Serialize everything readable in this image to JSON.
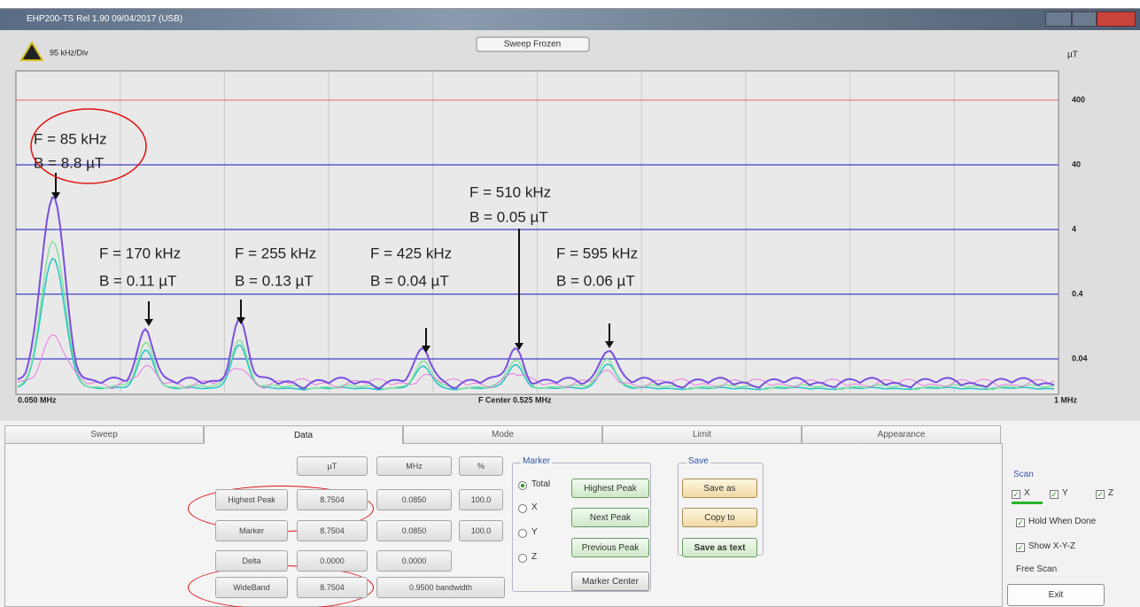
{
  "window": {
    "title": "EHP200-TS Rel 1.90 09/04/2017 (USB)"
  },
  "plot": {
    "div_label": "95 kHz/Div",
    "status_button": "Sweep Frozen",
    "unit": "µT",
    "y_labels": [
      "400",
      "40",
      "4",
      "0.4",
      "0.04"
    ],
    "x_labels": [
      "0.050 MHz",
      "F Center 0.525 MHz",
      "1 MHz"
    ],
    "annotations": [
      {
        "freq": "F = 85 kHz",
        "field": "B = 8.8 µT"
      },
      {
        "freq": "F = 170 kHz",
        "field": "B = 0.11 µT"
      },
      {
        "freq": "F = 255 kHz",
        "field": "B = 0.13 µT"
      },
      {
        "freq": "F = 425 kHz",
        "field": "B = 0.04 µT"
      },
      {
        "freq": "F = 510 kHz",
        "field": "B = 0.05 µT"
      },
      {
        "freq": "F = 595 kHz",
        "field": "B = 0.06 µT"
      }
    ]
  },
  "tabs": [
    "Sweep",
    "Data",
    "Mode",
    "Limit",
    "Appearance"
  ],
  "data_table": {
    "headers": [
      "µT",
      "MHz",
      "%"
    ],
    "rows": [
      [
        "Highest Peak",
        "8.7504",
        "0.0850",
        "100.0"
      ],
      [
        "Marker",
        "8.7504",
        "0.0850",
        "100.0"
      ],
      [
        "Delta",
        "0.0000",
        "0.0000"
      ],
      [
        "WideBand",
        "8.7504",
        "0.9500 bandwidth"
      ]
    ]
  },
  "marker": {
    "title": "Marker",
    "options": [
      "Total",
      "X",
      "Y",
      "Z"
    ],
    "buttons": [
      "Highest Peak",
      "Next Peak",
      "Previous Peak",
      "Marker Center"
    ]
  },
  "save": {
    "title": "Save",
    "buttons": [
      "Save as",
      "Copy to",
      "Save as text"
    ]
  },
  "scan": {
    "title": "Scan",
    "axes": [
      "X",
      "Y",
      "Z"
    ],
    "options": [
      "Hold When Done",
      "Show X-Y-Z"
    ],
    "mode": "Free Scan",
    "exit": "Exit"
  }
}
